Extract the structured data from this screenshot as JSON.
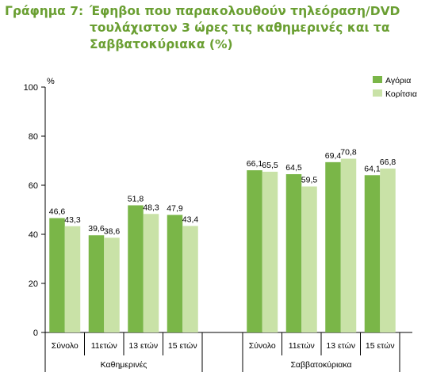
{
  "title": {
    "prefix": "Γράφημα 7:",
    "text": "Έφηβοι που παρακολουθούν τηλεόραση/DVD τουλάχιστον 3 ώρες τις καθημερινές και τα Σαββατοκύριακα (%)"
  },
  "colors": {
    "boys": "#7ab648",
    "girls": "#c9e2a7",
    "title": "#6a9f32",
    "axis": "#000000"
  },
  "chart_data": {
    "type": "bar",
    "y_unit": "%",
    "ylim": [
      0,
      100
    ],
    "yticks": [
      "0",
      "20",
      "40",
      "60",
      "80",
      "100"
    ],
    "grid": false,
    "legend_position": "top-right",
    "groups": [
      {
        "label": "Καθημερινές",
        "categories": [
          "Σύνολο",
          "11ετών",
          "13 ετών",
          "15 ετών"
        ],
        "series": [
          {
            "name": "Αγόρια",
            "values": [
              46.6,
              39.6,
              51.8,
              47.9
            ],
            "labels": [
              "46,6",
              "39,6",
              "51,8",
              "47,9"
            ]
          },
          {
            "name": "Κορίτσια",
            "values": [
              43.3,
              38.6,
              48.3,
              43.4
            ],
            "labels": [
              "43,3",
              "38,6",
              "48,3",
              "43,4"
            ]
          }
        ]
      },
      {
        "label": "Σαββατοκύριακα",
        "categories": [
          "Σύνολο",
          "11ετών",
          "13 ετών",
          "15 ετών"
        ],
        "series": [
          {
            "name": "Αγόρια",
            "values": [
              66.1,
              64.5,
              69.4,
              64.1
            ],
            "labels": [
              "66,1",
              "64,5",
              "69,4",
              "64,1"
            ]
          },
          {
            "name": "Κορίτσια",
            "values": [
              65.5,
              59.5,
              70.8,
              66.8
            ],
            "labels": [
              "65,5",
              "59,5",
              "70,8",
              "66,8"
            ]
          }
        ]
      }
    ]
  }
}
